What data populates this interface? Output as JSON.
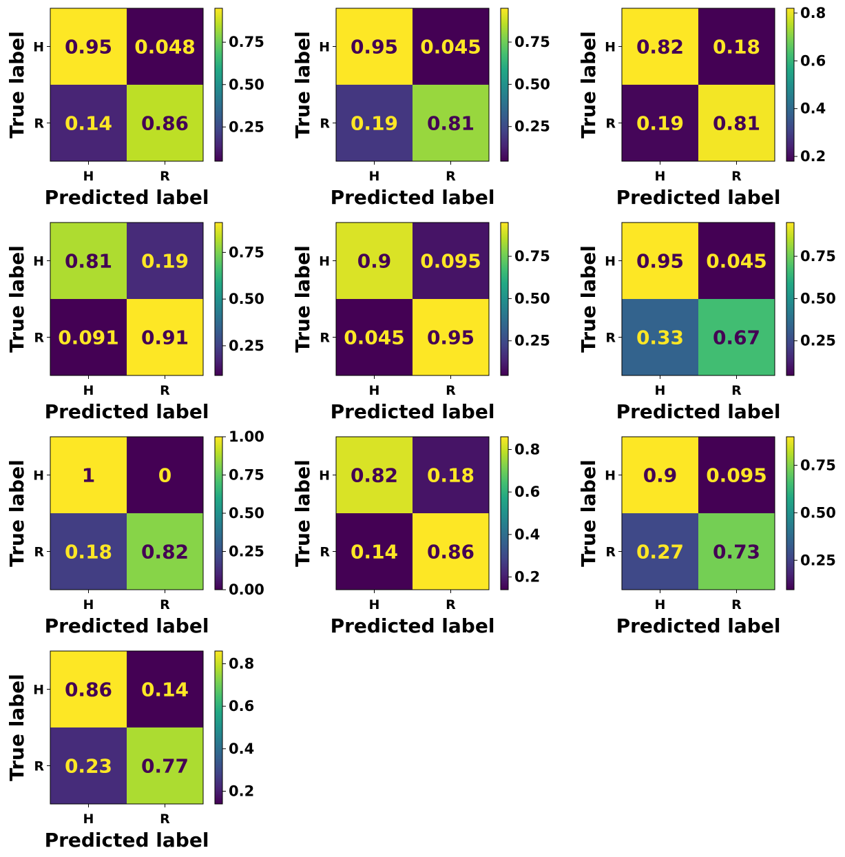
{
  "figure": {
    "row_labels": [
      "H",
      "R"
    ],
    "col_labels": [
      "H",
      "R"
    ],
    "xlabel": "Predicted label",
    "ylabel": "True label",
    "colormap": "viridis",
    "text_dark": "#440154",
    "text_light": "#fde725"
  },
  "chart_data": [
    {
      "type": "heatmap",
      "title": "",
      "xlabel": "Predicted label",
      "ylabel": "True label",
      "x": [
        "H",
        "R"
      ],
      "y": [
        "H",
        "R"
      ],
      "values": [
        [
          0.95,
          0.048
        ],
        [
          0.14,
          0.86
        ]
      ],
      "value_labels": [
        [
          "0.95",
          "0.048"
        ],
        [
          "0.14",
          "0.86"
        ]
      ],
      "colorbar": {
        "range": [
          0.048,
          0.95
        ],
        "ticks": [
          0.25,
          0.5,
          0.75
        ],
        "tick_labels": [
          "0.25",
          "0.50",
          "0.75"
        ]
      }
    },
    {
      "type": "heatmap",
      "title": "",
      "xlabel": "Predicted label",
      "ylabel": "True label",
      "x": [
        "H",
        "R"
      ],
      "y": [
        "H",
        "R"
      ],
      "values": [
        [
          0.95,
          0.045
        ],
        [
          0.19,
          0.81
        ]
      ],
      "value_labels": [
        [
          "0.95",
          "0.045"
        ],
        [
          "0.19",
          "0.81"
        ]
      ],
      "colorbar": {
        "range": [
          0.045,
          0.95
        ],
        "ticks": [
          0.25,
          0.5,
          0.75
        ],
        "tick_labels": [
          "0.25",
          "0.50",
          "0.75"
        ]
      }
    },
    {
      "type": "heatmap",
      "title": "",
      "xlabel": "Predicted label",
      "ylabel": "True label",
      "x": [
        "H",
        "R"
      ],
      "y": [
        "H",
        "R"
      ],
      "values": [
        [
          0.82,
          0.18
        ],
        [
          0.19,
          0.81
        ]
      ],
      "value_labels": [
        [
          "0.82",
          "0.18"
        ],
        [
          "0.19",
          "0.81"
        ]
      ],
      "colorbar": {
        "range": [
          0.18,
          0.82
        ],
        "ticks": [
          0.2,
          0.4,
          0.6,
          0.8
        ],
        "tick_labels": [
          "0.2",
          "0.4",
          "0.6",
          "0.8"
        ]
      }
    },
    {
      "type": "heatmap",
      "title": "",
      "xlabel": "Predicted label",
      "ylabel": "True label",
      "x": [
        "H",
        "R"
      ],
      "y": [
        "H",
        "R"
      ],
      "values": [
        [
          0.81,
          0.19
        ],
        [
          0.091,
          0.91
        ]
      ],
      "value_labels": [
        [
          "0.81",
          "0.19"
        ],
        [
          "0.091",
          "0.91"
        ]
      ],
      "colorbar": {
        "range": [
          0.091,
          0.91
        ],
        "ticks": [
          0.25,
          0.5,
          0.75
        ],
        "tick_labels": [
          "0.25",
          "0.50",
          "0.75"
        ]
      }
    },
    {
      "type": "heatmap",
      "title": "",
      "xlabel": "Predicted label",
      "ylabel": "True label",
      "x": [
        "H",
        "R"
      ],
      "y": [
        "H",
        "R"
      ],
      "values": [
        [
          0.9,
          0.095
        ],
        [
          0.045,
          0.95
        ]
      ],
      "value_labels": [
        [
          "0.9",
          "0.095"
        ],
        [
          "0.045",
          "0.95"
        ]
      ],
      "colorbar": {
        "range": [
          0.045,
          0.95
        ],
        "ticks": [
          0.25,
          0.5,
          0.75
        ],
        "tick_labels": [
          "0.25",
          "0.50",
          "0.75"
        ]
      }
    },
    {
      "type": "heatmap",
      "title": "",
      "xlabel": "Predicted label",
      "ylabel": "True label",
      "x": [
        "H",
        "R"
      ],
      "y": [
        "H",
        "R"
      ],
      "values": [
        [
          0.95,
          0.045
        ],
        [
          0.33,
          0.67
        ]
      ],
      "value_labels": [
        [
          "0.95",
          "0.045"
        ],
        [
          "0.33",
          "0.67"
        ]
      ],
      "colorbar": {
        "range": [
          0.045,
          0.95
        ],
        "ticks": [
          0.25,
          0.5,
          0.75
        ],
        "tick_labels": [
          "0.25",
          "0.50",
          "0.75"
        ]
      }
    },
    {
      "type": "heatmap",
      "title": "",
      "xlabel": "Predicted label",
      "ylabel": "True label",
      "x": [
        "H",
        "R"
      ],
      "y": [
        "H",
        "R"
      ],
      "values": [
        [
          1,
          0
        ],
        [
          0.18,
          0.82
        ]
      ],
      "value_labels": [
        [
          "1",
          "0"
        ],
        [
          "0.18",
          "0.82"
        ]
      ],
      "colorbar": {
        "range": [
          0,
          1
        ],
        "ticks": [
          0,
          0.25,
          0.5,
          0.75,
          1
        ],
        "tick_labels": [
          "0.00",
          "0.25",
          "0.50",
          "0.75",
          "1.00"
        ]
      }
    },
    {
      "type": "heatmap",
      "title": "",
      "xlabel": "Predicted label",
      "ylabel": "True label",
      "x": [
        "H",
        "R"
      ],
      "y": [
        "H",
        "R"
      ],
      "values": [
        [
          0.82,
          0.18
        ],
        [
          0.14,
          0.86
        ]
      ],
      "value_labels": [
        [
          "0.82",
          "0.18"
        ],
        [
          "0.14",
          "0.86"
        ]
      ],
      "colorbar": {
        "range": [
          0.14,
          0.86
        ],
        "ticks": [
          0.2,
          0.4,
          0.6,
          0.8
        ],
        "tick_labels": [
          "0.2",
          "0.4",
          "0.6",
          "0.8"
        ]
      }
    },
    {
      "type": "heatmap",
      "title": "",
      "xlabel": "Predicted label",
      "ylabel": "True label",
      "x": [
        "H",
        "R"
      ],
      "y": [
        "H",
        "R"
      ],
      "values": [
        [
          0.9,
          0.095
        ],
        [
          0.27,
          0.73
        ]
      ],
      "value_labels": [
        [
          "0.9",
          "0.095"
        ],
        [
          "0.27",
          "0.73"
        ]
      ],
      "colorbar": {
        "range": [
          0.095,
          0.9
        ],
        "ticks": [
          0.25,
          0.5,
          0.75
        ],
        "tick_labels": [
          "0.25",
          "0.50",
          "0.75"
        ]
      }
    },
    {
      "type": "heatmap",
      "title": "",
      "xlabel": "Predicted label",
      "ylabel": "True label",
      "x": [
        "H",
        "R"
      ],
      "y": [
        "H",
        "R"
      ],
      "values": [
        [
          0.86,
          0.14
        ],
        [
          0.23,
          0.77
        ]
      ],
      "value_labels": [
        [
          "0.86",
          "0.14"
        ],
        [
          "0.23",
          "0.77"
        ]
      ],
      "colorbar": {
        "range": [
          0.14,
          0.86
        ],
        "ticks": [
          0.2,
          0.4,
          0.6,
          0.8
        ],
        "tick_labels": [
          "0.2",
          "0.4",
          "0.6",
          "0.8"
        ]
      }
    }
  ]
}
